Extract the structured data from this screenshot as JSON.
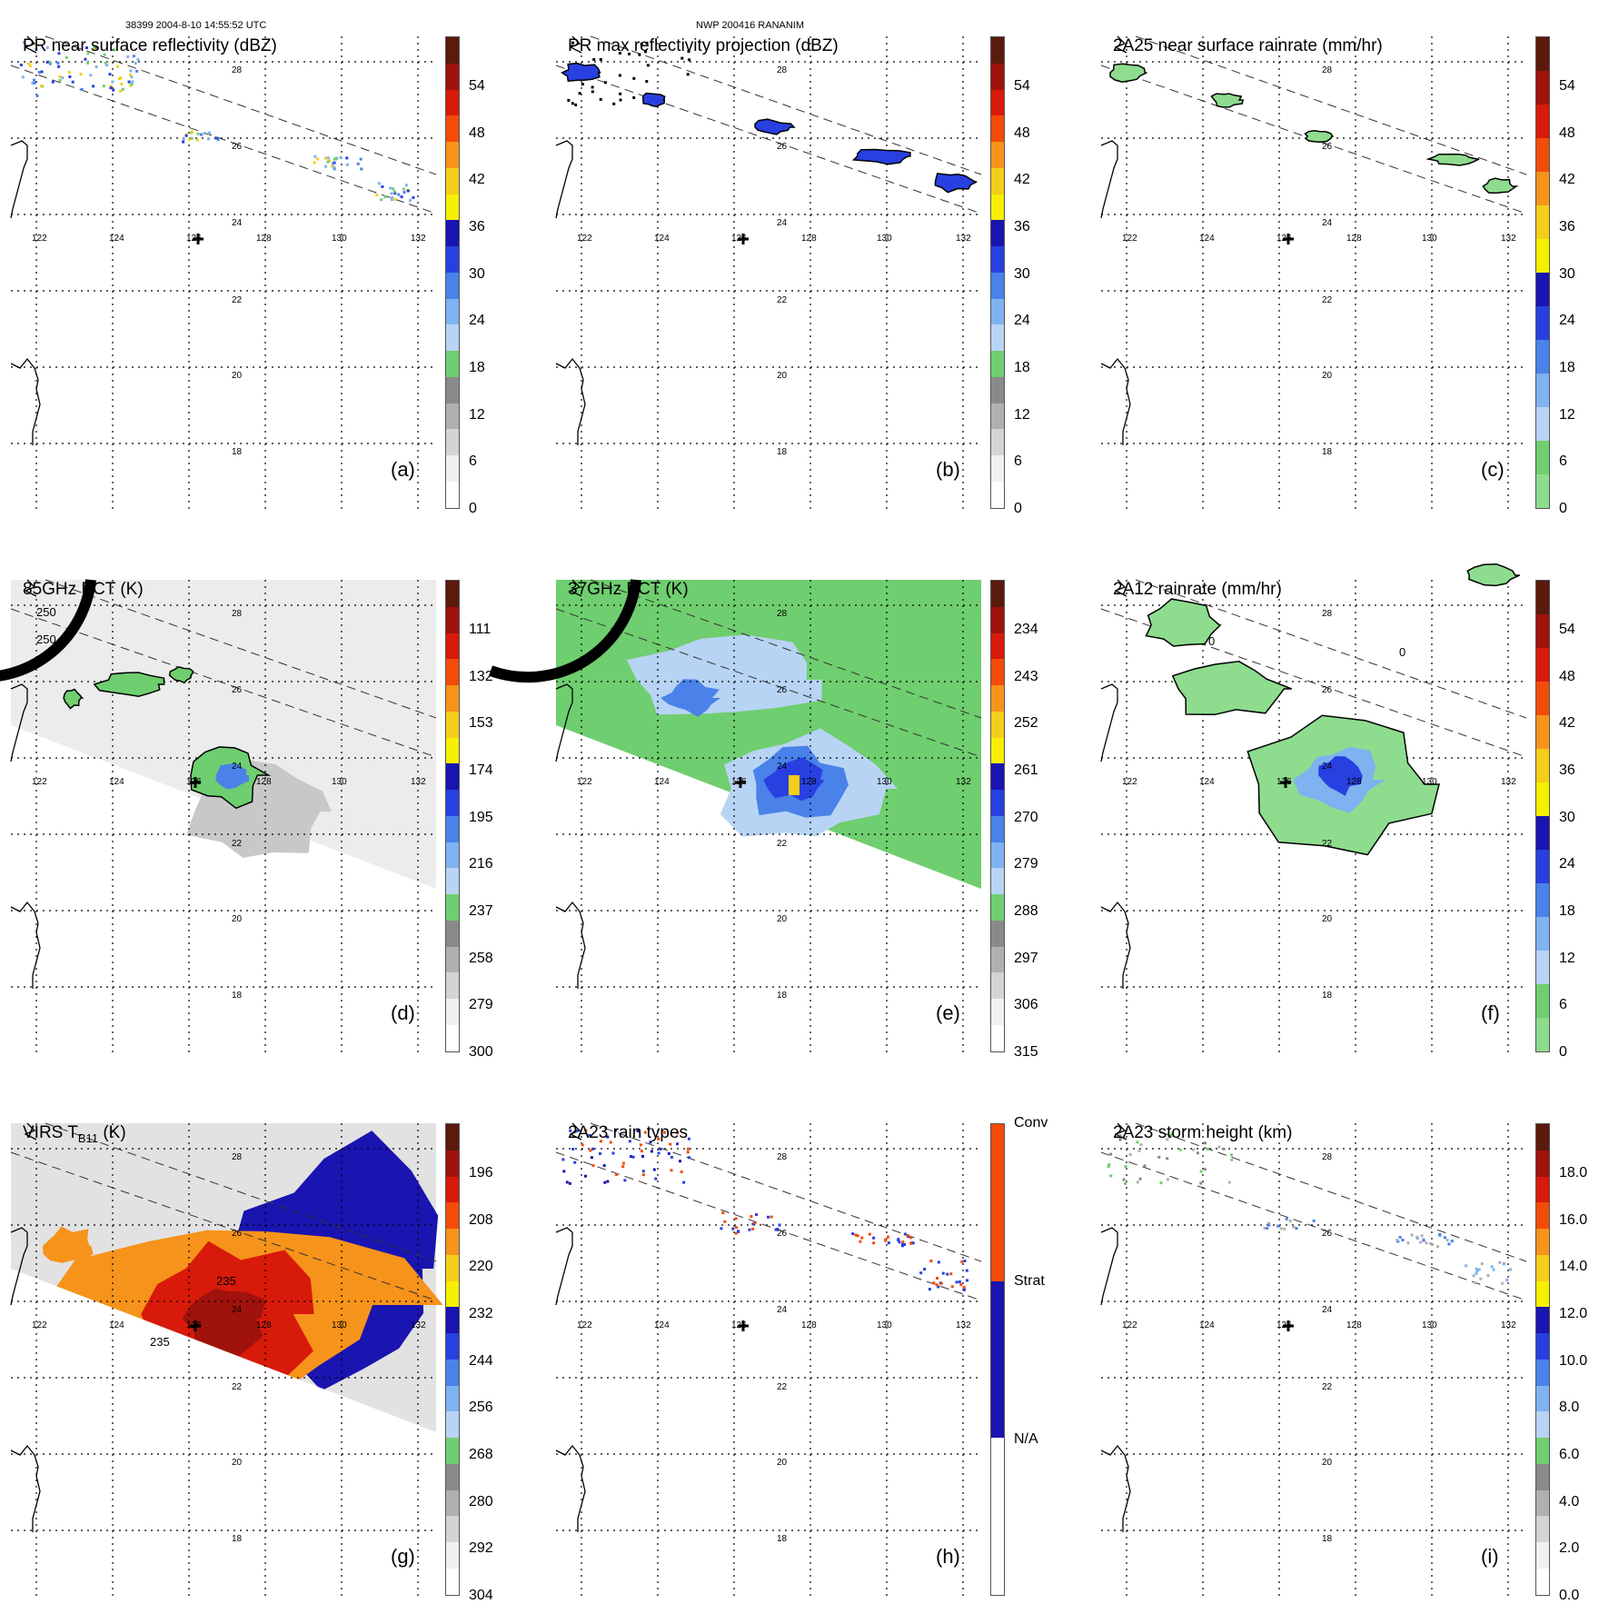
{
  "header": {
    "orbit_info": "38399 2004-8-10 14:55:52 UTC",
    "storm_info": "NWP 200416 RANANIM"
  },
  "map": {
    "lon_labels": [
      "122",
      "124",
      "126",
      "128",
      "130",
      "132"
    ],
    "lat_labels": [
      "28",
      "26",
      "24",
      "22",
      "20",
      "18"
    ]
  },
  "panels": [
    {
      "id": "a",
      "title": "PR near surface reflectivity (dBZ)",
      "label": "(a)",
      "colorbar_ticks": [
        "54",
        "48",
        "42",
        "36",
        "30",
        "24",
        "18",
        "12",
        "6",
        "0"
      ],
      "colorbar_colors": [
        "#5b1a0c",
        "#a0120c",
        "#d81a0a",
        "#f34b0a",
        "#f6931a",
        "#f5ce18",
        "#f6f000",
        "#1a14b0",
        "#2840e0",
        "#4a82ea",
        "#7fb2f0",
        "#b8d4f4",
        "#6fce6f",
        "#8a8a8a",
        "#b0b0b0",
        "#d4d4d4",
        "#f0f0f0",
        "#ffffff"
      ],
      "field": "pr_near_surface"
    },
    {
      "id": "b",
      "title": "PR max reflectivity projection (dBZ)",
      "label": "(b)",
      "colorbar_ticks": [
        "54",
        "48",
        "42",
        "36",
        "30",
        "24",
        "18",
        "12",
        "6",
        "0"
      ],
      "colorbar_colors": [
        "#5b1a0c",
        "#a0120c",
        "#d81a0a",
        "#f34b0a",
        "#f6931a",
        "#f5ce18",
        "#f6f000",
        "#1a14b0",
        "#2840e0",
        "#4a82ea",
        "#7fb2f0",
        "#b8d4f4",
        "#6fce6f",
        "#8a8a8a",
        "#b0b0b0",
        "#d4d4d4",
        "#f0f0f0",
        "#ffffff"
      ],
      "field": "pr_max"
    },
    {
      "id": "c",
      "title": "2A25 near surface rainrate (mm/hr)",
      "label": "(c)",
      "colorbar_ticks": [
        "54",
        "48",
        "42",
        "36",
        "30",
        "24",
        "18",
        "12",
        "6",
        "0"
      ],
      "colorbar_colors": [
        "#5b1a0c",
        "#a0120c",
        "#d81a0a",
        "#f34b0a",
        "#f6931a",
        "#f5ce18",
        "#f6f000",
        "#1a14b0",
        "#2840e0",
        "#4a82ea",
        "#7fb2f0",
        "#b8d4f4",
        "#6fce6f",
        "#8edc8e"
      ],
      "field": "rainrate_2a25"
    },
    {
      "id": "d",
      "title": "85GHz PCT (K)",
      "label": "(d)",
      "colorbar_ticks": [
        "111",
        "132",
        "153",
        "174",
        "195",
        "216",
        "237",
        "258",
        "279",
        "300"
      ],
      "colorbar_colors": [
        "#5b1a0c",
        "#a0120c",
        "#d81a0a",
        "#f34b0a",
        "#f6931a",
        "#f5ce18",
        "#f6f000",
        "#1a14b0",
        "#2840e0",
        "#4a82ea",
        "#7fb2f0",
        "#b8d4f4",
        "#6fce6f",
        "#8a8a8a",
        "#b0b0b0",
        "#d4d4d4",
        "#f0f0f0",
        "#ffffff"
      ],
      "field": "pct85",
      "contour_labels": [
        "250",
        "250"
      ]
    },
    {
      "id": "e",
      "title": "37GHz PCT (K)",
      "label": "(e)",
      "colorbar_ticks": [
        "234",
        "243",
        "252",
        "261",
        "270",
        "279",
        "288",
        "297",
        "306",
        "315"
      ],
      "colorbar_colors": [
        "#5b1a0c",
        "#a0120c",
        "#d81a0a",
        "#f34b0a",
        "#f6931a",
        "#f5ce18",
        "#f6f000",
        "#1a14b0",
        "#2840e0",
        "#4a82ea",
        "#7fb2f0",
        "#b8d4f4",
        "#6fce6f",
        "#8a8a8a",
        "#b0b0b0",
        "#d4d4d4",
        "#f0f0f0",
        "#ffffff"
      ],
      "field": "pct37"
    },
    {
      "id": "f",
      "title": "2A12 rainrate (mm/hr)",
      "label": "(f)",
      "colorbar_ticks": [
        "54",
        "48",
        "42",
        "36",
        "30",
        "24",
        "18",
        "12",
        "6",
        "0"
      ],
      "colorbar_colors": [
        "#5b1a0c",
        "#a0120c",
        "#d81a0a",
        "#f34b0a",
        "#f6931a",
        "#f5ce18",
        "#f6f000",
        "#1a14b0",
        "#2840e0",
        "#4a82ea",
        "#7fb2f0",
        "#b8d4f4",
        "#6fce6f",
        "#8edc8e"
      ],
      "field": "rainrate_2a12",
      "contour_labels": [
        "0",
        "0"
      ]
    },
    {
      "id": "g",
      "title": "VIRS T",
      "title_sub": "B11",
      "title_tail": " (K)",
      "label": "(g)",
      "colorbar_ticks": [
        "196",
        "208",
        "220",
        "232",
        "244",
        "256",
        "268",
        "280",
        "292",
        "304"
      ],
      "colorbar_colors": [
        "#5b1a0c",
        "#a0120c",
        "#d81a0a",
        "#f34b0a",
        "#f6931a",
        "#f5ce18",
        "#f6f000",
        "#1a14b0",
        "#2840e0",
        "#4a82ea",
        "#7fb2f0",
        "#b8d4f4",
        "#6fce6f",
        "#8a8a8a",
        "#b0b0b0",
        "#d4d4d4",
        "#f0f0f0",
        "#ffffff"
      ],
      "field": "virs",
      "contour_labels": [
        "235",
        "235"
      ]
    },
    {
      "id": "h",
      "title": "2A23 rain types",
      "label": "(h)",
      "colorbar_ticks": [
        "Conv",
        "Strat",
        "N/A"
      ],
      "colorbar_colors": [
        "#f34b0a",
        "#1a14b0",
        "#ffffff"
      ],
      "field": "raintype"
    },
    {
      "id": "i",
      "title": "2A23 storm height (km)",
      "label": "(i)",
      "colorbar_ticks": [
        "18.0",
        "16.0",
        "14.0",
        "12.0",
        "10.0",
        "8.0",
        "6.0",
        "4.0",
        "2.0",
        "0.0"
      ],
      "colorbar_colors": [
        "#5b1a0c",
        "#a0120c",
        "#d81a0a",
        "#f34b0a",
        "#f6931a",
        "#f5ce18",
        "#f6f000",
        "#1a14b0",
        "#2840e0",
        "#4a82ea",
        "#7fb2f0",
        "#b8d4f4",
        "#6fce6f",
        "#8a8a8a",
        "#b0b0b0",
        "#d4d4d4",
        "#f0f0f0",
        "#ffffff"
      ],
      "field": "stormheight"
    }
  ]
}
